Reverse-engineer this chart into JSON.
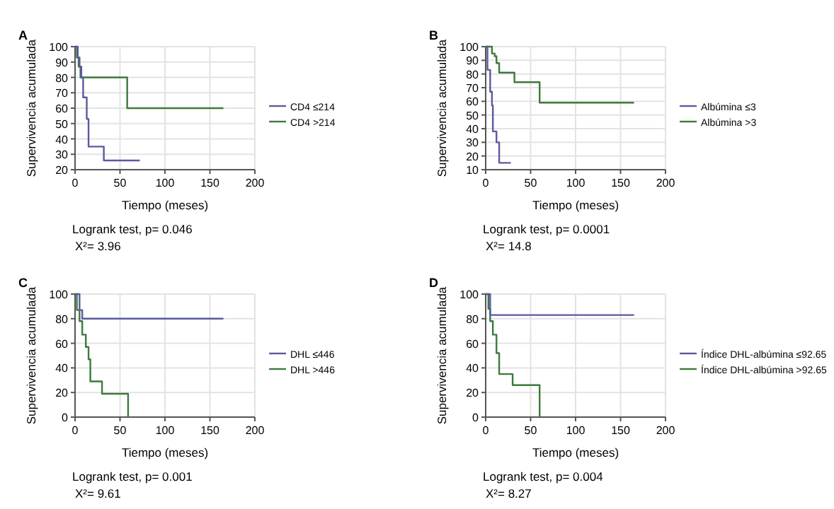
{
  "chart_data": [
    {
      "type": "step",
      "title": "A",
      "xlabel": "Tiempo (meses)",
      "ylabel": "Supervivencia acumulada",
      "xlim": [
        0,
        200
      ],
      "xticks": [
        0,
        50,
        100,
        150,
        200
      ],
      "ylim": [
        20,
        100
      ],
      "yticks": [
        20,
        30,
        40,
        50,
        60,
        70,
        80,
        90,
        100
      ],
      "grid": true,
      "legend": "right",
      "marker": "none",
      "line_style": "solid",
      "annotations": [
        "Logrank test, p= 0.046",
        "X²= 3.96"
      ],
      "series": [
        {
          "name": "CD4 ≤214",
          "color": "#5a5aa0",
          "x": [
            0,
            3,
            5,
            7,
            9,
            13,
            15,
            32,
            72
          ],
          "values": [
            100,
            93,
            87,
            80,
            67,
            53,
            35,
            26,
            26
          ]
        },
        {
          "name": "CD4 >214",
          "color": "#3c7a3c",
          "x": [
            0,
            2,
            4,
            6,
            58,
            165
          ],
          "values": [
            100,
            93,
            87,
            80,
            60,
            60
          ]
        }
      ]
    },
    {
      "type": "step",
      "title": "B",
      "xlabel": "Tiempo (meses)",
      "ylabel": "Supervivencia acumulada",
      "xlim": [
        0,
        200
      ],
      "xticks": [
        0,
        50,
        100,
        150,
        200
      ],
      "ylim": [
        10,
        100
      ],
      "yticks": [
        10,
        20,
        30,
        40,
        50,
        60,
        70,
        80,
        90,
        100
      ],
      "grid": true,
      "legend": "right",
      "marker": "none",
      "line_style": "solid",
      "annotations": [
        "Logrank test, p= 0.0001",
        "X²= 14.8"
      ],
      "series": [
        {
          "name": "Albúmina ≤3",
          "color": "#5a5aa0",
          "x": [
            0,
            2,
            5,
            7,
            8,
            12,
            15,
            28
          ],
          "values": [
            100,
            83,
            67,
            57,
            38,
            30,
            15,
            15
          ]
        },
        {
          "name": "Albúmina >3",
          "color": "#3c7a3c",
          "x": [
            0,
            7,
            10,
            12,
            15,
            32,
            60,
            165
          ],
          "values": [
            100,
            95,
            93,
            88,
            81,
            74,
            59,
            59
          ]
        }
      ]
    },
    {
      "type": "step",
      "title": "C",
      "xlabel": "Tiempo (meses)",
      "ylabel": "Supervivencia acumulada",
      "xlim": [
        0,
        200
      ],
      "xticks": [
        0,
        50,
        100,
        150,
        200
      ],
      "ylim": [
        0,
        100
      ],
      "yticks": [
        0,
        20,
        40,
        60,
        80,
        100
      ],
      "grid": true,
      "legend": "right",
      "marker": "none",
      "line_style": "solid",
      "annotations": [
        "Logrank test, p= 0.001",
        "X²= 9.61"
      ],
      "series": [
        {
          "name": "DHL ≤446",
          "color": "#5a5aa0",
          "x": [
            0,
            5,
            8,
            165
          ],
          "values": [
            100,
            87,
            80,
            80
          ]
        },
        {
          "name": "DHL >446",
          "color": "#3c7a3c",
          "x": [
            0,
            2,
            5,
            8,
            12,
            15,
            17,
            30,
            59
          ],
          "values": [
            100,
            87,
            78,
            67,
            57,
            47,
            29,
            19,
            0
          ]
        }
      ]
    },
    {
      "type": "step",
      "title": "D",
      "xlabel": "Tiempo (meses)",
      "ylabel": "Supervivencia acumulada",
      "xlim": [
        0,
        200
      ],
      "xticks": [
        0,
        50,
        100,
        150,
        200
      ],
      "ylim": [
        0,
        100
      ],
      "yticks": [
        0,
        20,
        40,
        60,
        80,
        100
      ],
      "grid": true,
      "legend": "right",
      "marker": "none",
      "line_style": "solid",
      "annotations": [
        "Logrank test, p= 0.004",
        "X²= 8.27"
      ],
      "series": [
        {
          "name": "Índice DHL-albúmina ≤92.65",
          "color": "#5a5aa0",
          "x": [
            0,
            5,
            12,
            28,
            58,
            70,
            130,
            165
          ],
          "values": [
            100,
            83,
            83,
            83,
            83,
            83,
            83,
            83
          ]
        },
        {
          "name": "Índice DHL-albúmina >92.65",
          "color": "#3c7a3c",
          "x": [
            0,
            3,
            5,
            8,
            12,
            15,
            30,
            60
          ],
          "values": [
            100,
            88,
            78,
            67,
            52,
            35,
            26,
            0
          ]
        }
      ]
    }
  ]
}
